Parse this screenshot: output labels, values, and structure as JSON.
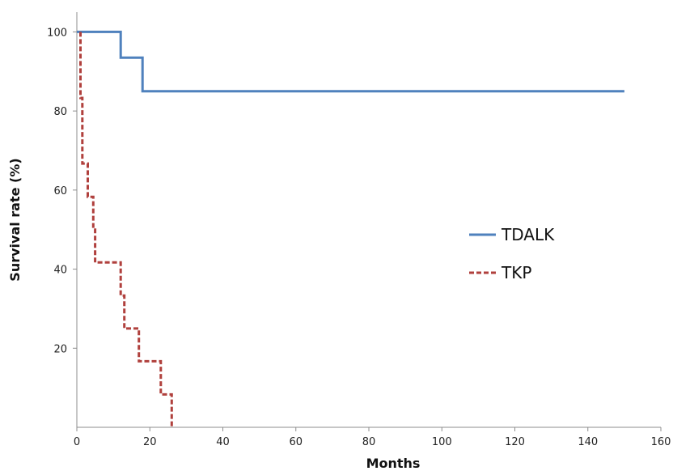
{
  "chart_data": {
    "type": "line",
    "step": true,
    "title": "",
    "xlabel": "Months",
    "ylabel": "Survival rate (%)",
    "xlim": [
      0,
      160
    ],
    "ylim": [
      0,
      105
    ],
    "x_ticks": [
      0,
      20,
      40,
      60,
      80,
      100,
      120,
      140,
      160
    ],
    "y_ticks": [
      20,
      40,
      60,
      80,
      100
    ],
    "grid": false,
    "legend_position": "right",
    "series": [
      {
        "name": "TDALK",
        "color": "#4F81BD",
        "style": "solid",
        "x": [
          0,
          12,
          12,
          18,
          18,
          150
        ],
        "y": [
          100,
          100,
          93.5,
          93.5,
          85,
          85
        ]
      },
      {
        "name": "TKP",
        "color": "#B0403D",
        "style": "dashed",
        "x": [
          1,
          1,
          1.5,
          1.5,
          3,
          3,
          4.5,
          4.5,
          5,
          5,
          6,
          6,
          12,
          12,
          13,
          13,
          17,
          17,
          23,
          23,
          26,
          26
        ],
        "y": [
          100,
          83.3,
          83.3,
          66.7,
          66.7,
          58.3,
          58.3,
          50,
          50,
          41.7,
          41.7,
          41.7,
          41.7,
          33.3,
          33.3,
          25,
          25,
          16.7,
          16.7,
          8.3,
          8.3,
          0
        ]
      }
    ]
  }
}
